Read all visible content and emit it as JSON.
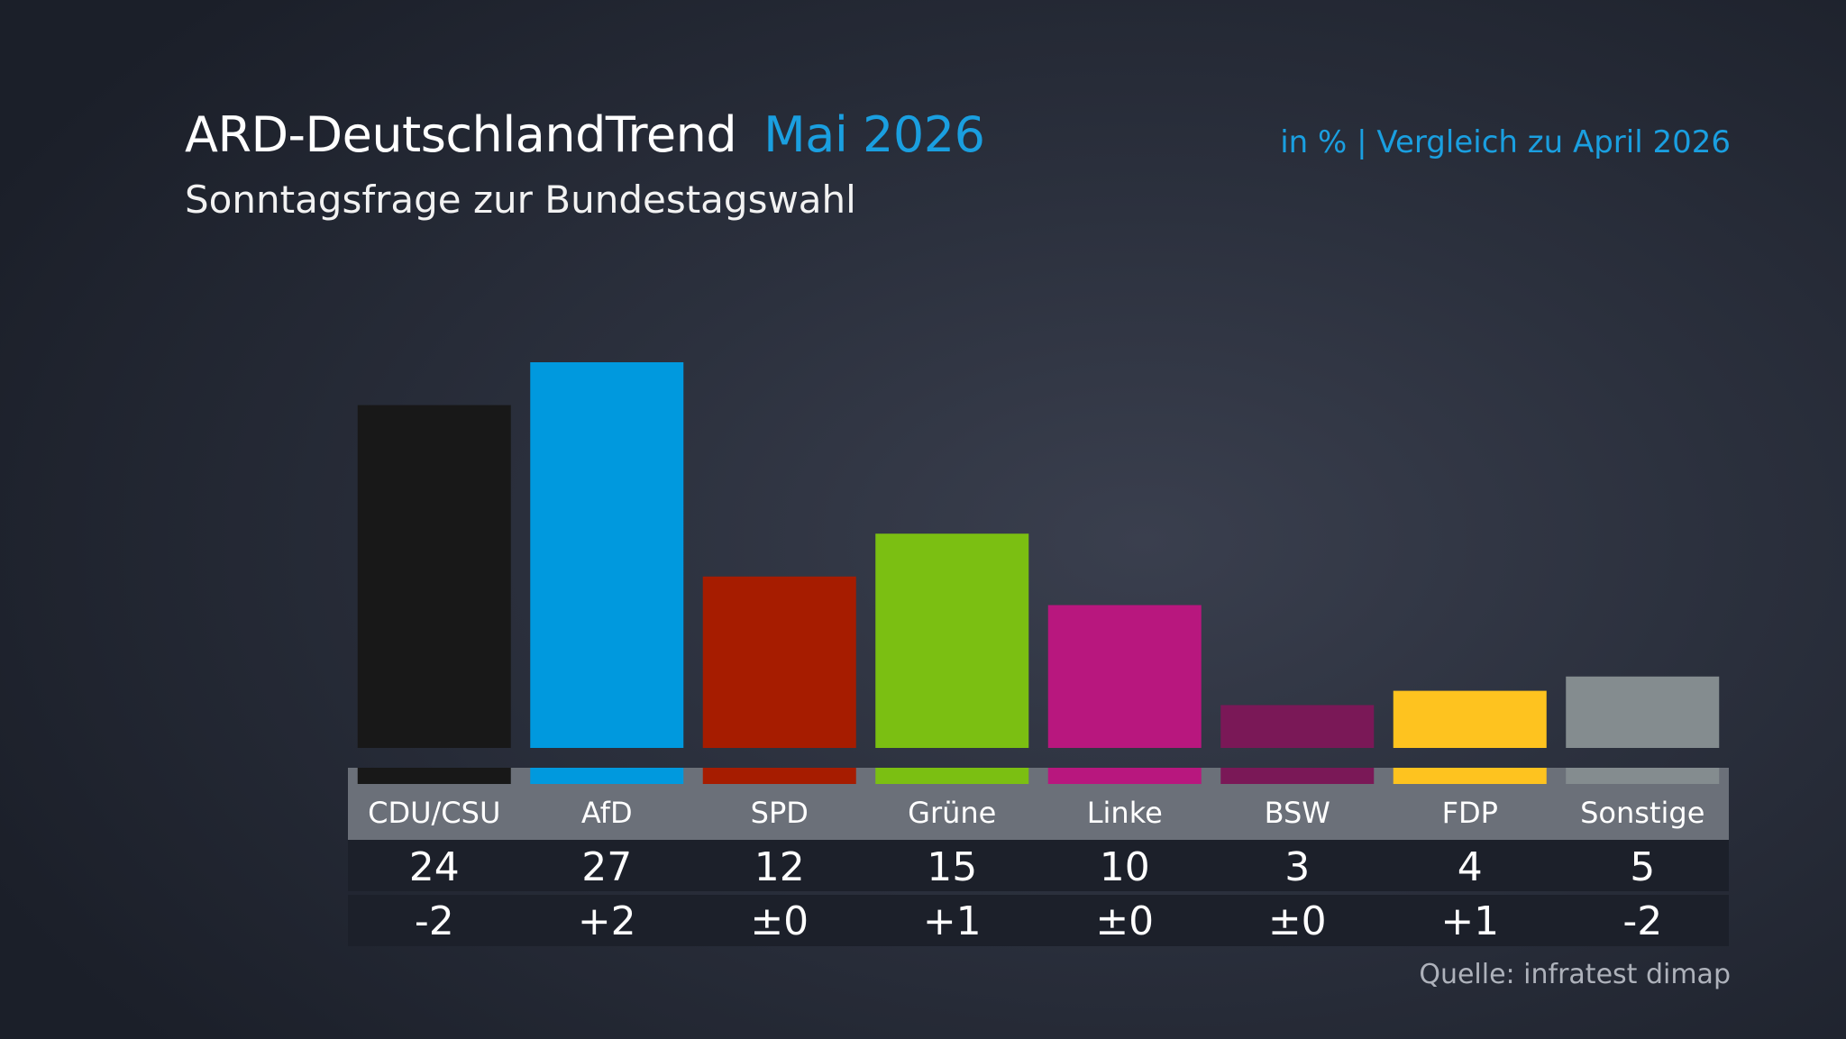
{
  "header": {
    "title": "ARD-DeutschlandTrend",
    "date": "Mai 2026",
    "subtitle": "Sonntagsfrage zur Bundestagswahl",
    "note": "in % | Vergleich zu April 2026",
    "source": "Quelle: infratest dimap"
  },
  "chart_data": {
    "type": "bar",
    "title": "ARD-DeutschlandTrend Mai 2026",
    "subtitle": "Sonntagsfrage zur Bundestagswahl",
    "unit": "in %",
    "comparison": "Vergleich zu April 2026",
    "categories": [
      "CDU/CSU",
      "AfD",
      "SPD",
      "Grüne",
      "Linke",
      "BSW",
      "FDP",
      "Sonstige"
    ],
    "values": [
      24,
      27,
      12,
      15,
      10,
      3,
      4,
      5
    ],
    "changes": [
      "-2",
      "+2",
      "±0",
      "+1",
      "±0",
      "±0",
      "+1",
      "-2"
    ],
    "colors": [
      "#181818",
      "#0099de",
      "#a61c00",
      "#7bbf12",
      "#b8177e",
      "#7a1857",
      "#fec31f",
      "#848c8f"
    ],
    "ylim": [
      0,
      27
    ],
    "grid": false,
    "legend": "none"
  },
  "colors": {
    "accent": "#1a9fe0",
    "table_label_band": "#6b7079",
    "table_value_row": "#1c202a"
  }
}
